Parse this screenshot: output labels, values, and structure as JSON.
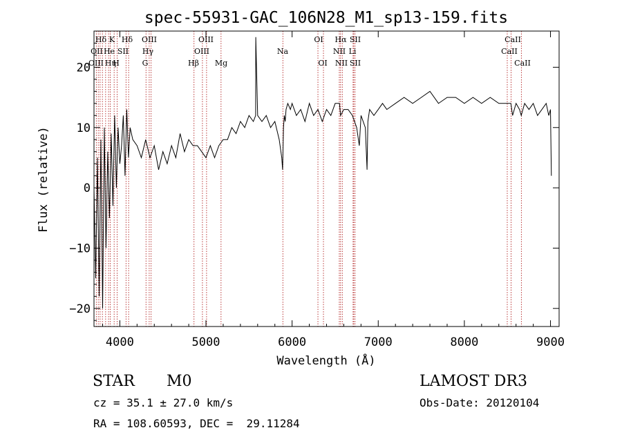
{
  "chart_data": {
    "type": "line",
    "title": "spec-55931-GAC_106N28_M1_sp13-159.fits",
    "xlabel": "Wavelength (Å)",
    "ylabel": "Flux (relative)",
    "xlim": [
      3700,
      9100
    ],
    "ylim": [
      -23,
      26
    ],
    "xticks": [
      4000,
      5000,
      6000,
      7000,
      8000,
      9000
    ],
    "xtick_labels": [
      "4000",
      "5000",
      "6000",
      "7000",
      "8000",
      "9000"
    ],
    "yticks": [
      20,
      10,
      0,
      -10,
      -20
    ],
    "ytick_labels": [
      "20",
      "10",
      "0",
      "−10",
      "−20"
    ],
    "grid": false,
    "series": [
      {
        "name": "flux",
        "x": [
          3700,
          3720,
          3740,
          3760,
          3780,
          3800,
          3820,
          3840,
          3860,
          3880,
          3900,
          3920,
          3940,
          3960,
          3980,
          4000,
          4020,
          4040,
          4060,
          4080,
          4100,
          4120,
          4150,
          4200,
          4250,
          4300,
          4350,
          4400,
          4450,
          4500,
          4550,
          4600,
          4650,
          4700,
          4750,
          4800,
          4850,
          4900,
          4950,
          5000,
          5050,
          5100,
          5150,
          5200,
          5250,
          5300,
          5350,
          5400,
          5450,
          5500,
          5550,
          5577,
          5578,
          5600,
          5650,
          5700,
          5750,
          5800,
          5850,
          5880,
          5890,
          5900,
          5910,
          5920,
          5930,
          5950,
          5980,
          6000,
          6050,
          6100,
          6150,
          6200,
          6250,
          6300,
          6350,
          6400,
          6450,
          6500,
          6550,
          6563,
          6600,
          6650,
          6700,
          6750,
          6780,
          6800,
          6850,
          6870,
          6880,
          6900,
          6950,
          7000,
          7050,
          7100,
          7200,
          7300,
          7400,
          7500,
          7600,
          7700,
          7800,
          7900,
          8000,
          8100,
          8200,
          8300,
          8400,
          8500,
          8540,
          8560,
          8600,
          8640,
          8660,
          8700,
          8750,
          8800,
          8850,
          8900,
          8950,
          8980,
          9000,
          9010
        ],
        "values": [
          0,
          -15,
          5,
          -18,
          8,
          -20,
          10,
          -10,
          6,
          -5,
          9,
          -3,
          12,
          0,
          10,
          4,
          7,
          12,
          2,
          13,
          5,
          10,
          8,
          7,
          5,
          8,
          5,
          7,
          3,
          6,
          4,
          7,
          5,
          9,
          6,
          8,
          7,
          7,
          6,
          5,
          7,
          5,
          7,
          8,
          8,
          10,
          9,
          11,
          10,
          12,
          11,
          12,
          25,
          12,
          11,
          12,
          10,
          11,
          8,
          5,
          3,
          10,
          12,
          11,
          13,
          14,
          13,
          14,
          12,
          13,
          11,
          14,
          12,
          13,
          11,
          13,
          12,
          14,
          14,
          12,
          13,
          13,
          12,
          10,
          7,
          12,
          10,
          3,
          11,
          13,
          12,
          13,
          14,
          13,
          14,
          15,
          14,
          15,
          16,
          14,
          15,
          15,
          14,
          15,
          14,
          15,
          14,
          14,
          14,
          12,
          14,
          13,
          12,
          14,
          13,
          14,
          12,
          13,
          14,
          12,
          13,
          2
        ]
      }
    ],
    "line_labels": [
      {
        "label": "Hδ",
        "row": 0
      },
      {
        "label": "K",
        "row": 0
      },
      {
        "label": "Hδ",
        "row": 0
      },
      {
        "label": "OIII",
        "row": 0
      },
      {
        "label": "OIII",
        "row": 0
      },
      {
        "label": "OI",
        "row": 0
      },
      {
        "label": "Hα",
        "row": 0
      },
      {
        "label": "SII",
        "row": 0
      },
      {
        "label": "CaII",
        "row": 0
      },
      {
        "label": "OII",
        "row": 1
      },
      {
        "label": "He",
        "row": 1
      },
      {
        "label": "SII",
        "row": 1
      },
      {
        "label": "Hγ",
        "row": 1
      },
      {
        "label": "OIII",
        "row": 1
      },
      {
        "label": "Na",
        "row": 1
      },
      {
        "label": "NII",
        "row": 1
      },
      {
        "label": "Li",
        "row": 1
      },
      {
        "label": "CaII",
        "row": 1
      },
      {
        "label": "OIII",
        "row": 2
      },
      {
        "label": "Hη",
        "row": 2
      },
      {
        "label": "H",
        "row": 2
      },
      {
        "label": "G",
        "row": 2
      },
      {
        "label": "Hβ",
        "row": 2
      },
      {
        "label": "Mg",
        "row": 2
      },
      {
        "label": "OI",
        "row": 2
      },
      {
        "label": "NII",
        "row": 2
      },
      {
        "label": "SII",
        "row": 2
      },
      {
        "label": "CaII",
        "row": 2
      }
    ],
    "line_wavelengths": [
      3727,
      3750,
      3771,
      3798,
      3835,
      3869,
      3889,
      3934,
      3969,
      4072,
      4102,
      4304,
      4341,
      4363,
      4861,
      4959,
      5007,
      5175,
      5893,
      6300,
      6364,
      6548,
      6563,
      6583,
      6708,
      6716,
      6731,
      8498,
      8542,
      8662
    ]
  },
  "info": {
    "class_label": "STAR",
    "subclass": "M0",
    "survey": "LAMOST DR3",
    "cz_text": "cz = 35.1 ± 27.0 km/s",
    "obs_date": "Obs-Date: 20120104",
    "coords": "RA = 108.60593, DEC =  29.11284"
  }
}
